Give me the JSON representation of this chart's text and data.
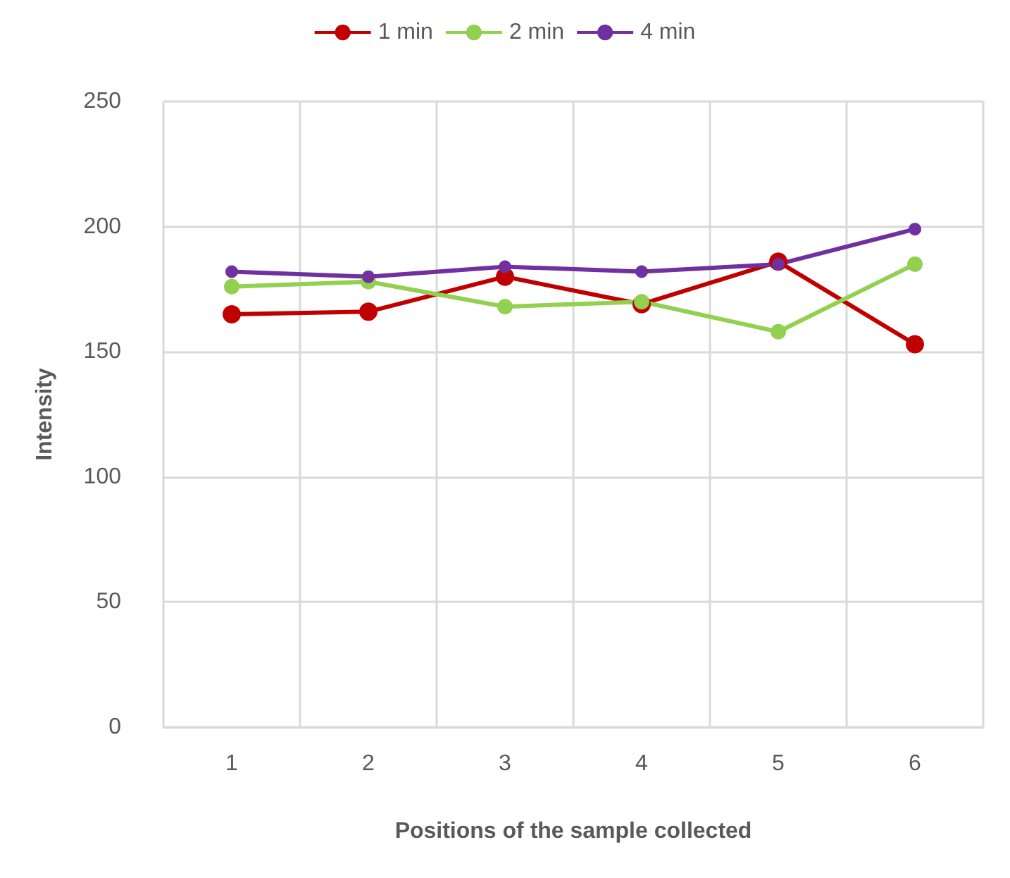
{
  "chart_data": {
    "type": "line",
    "xlabel": "Positions of the sample collected",
    "ylabel": "Intensity",
    "categories": [
      "1",
      "2",
      "3",
      "4",
      "5",
      "6"
    ],
    "series": [
      {
        "name": "1 min",
        "color": "#c00000",
        "values": [
          165,
          166,
          180,
          169,
          186,
          153
        ]
      },
      {
        "name": "2 min",
        "color": "#92d050",
        "values": [
          176,
          178,
          168,
          170,
          158,
          185
        ]
      },
      {
        "name": "4 min",
        "color": "#7030a0",
        "values": [
          182,
          180,
          184,
          182,
          185,
          199
        ]
      }
    ],
    "ylim": [
      0,
      250
    ],
    "yticks": [
      0,
      50,
      100,
      150,
      200,
      250
    ],
    "grid": true,
    "legend": "top",
    "marker": "circle",
    "line_style": "solid"
  }
}
